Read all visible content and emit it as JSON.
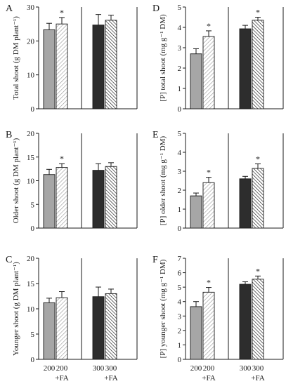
{
  "figure": {
    "background": "#ffffff",
    "stroke": "#1a1a1a"
  },
  "group_labels": [
    "200",
    "200\n+FA",
    "300",
    "300\n+FA"
  ],
  "styles": {
    "colors": {
      "grey": "#a6a6a6",
      "black": "#2d2d2d",
      "hatch_fill": "#ffffff",
      "hatch_light": "#8c8c8c",
      "hatch_dark": "#1a1a1a"
    },
    "bars": [
      "grey",
      "hatch-light",
      "black",
      "hatch-dark"
    ]
  },
  "chart_data": [
    {
      "type": "bar",
      "panel_letter": "A",
      "ylabel": "Total shoot (g DM plant⁻¹)",
      "ylim": [
        0,
        30
      ],
      "yticks": [
        "0",
        "10",
        "20",
        "30"
      ],
      "ytick_values": [
        0,
        10,
        20,
        30
      ],
      "categories": [
        "200",
        "200 +FA",
        "300",
        "300 +FA"
      ],
      "values": [
        23.3,
        25.0,
        24.7,
        26.1
      ],
      "errors": [
        1.9,
        1.9,
        3.1,
        1.5
      ],
      "significant": [
        false,
        true,
        false,
        false
      ],
      "mark": "*"
    },
    {
      "type": "bar",
      "panel_letter": "D",
      "ylabel": "[P] total shoot (mg g⁻¹ DM)",
      "ylim": [
        0,
        5
      ],
      "yticks": [
        "0",
        "1",
        "2",
        "3",
        "4",
        "5"
      ],
      "ytick_values": [
        0,
        1,
        2,
        3,
        4,
        5
      ],
      "categories": [
        "200",
        "200 +FA",
        "300",
        "300 +FA"
      ],
      "values": [
        2.7,
        3.55,
        3.93,
        4.35
      ],
      "errors": [
        0.25,
        0.28,
        0.17,
        0.15
      ],
      "significant": [
        false,
        true,
        false,
        true
      ],
      "mark": "*"
    },
    {
      "type": "bar",
      "panel_letter": "B",
      "ylabel": "Older shoot (g DM plant⁻¹)",
      "ylim": [
        0,
        20
      ],
      "yticks": [
        "0",
        "5",
        "10",
        "15",
        "20"
      ],
      "ytick_values": [
        0,
        5,
        10,
        15,
        20
      ],
      "categories": [
        "200",
        "200 +FA",
        "300",
        "300 +FA"
      ],
      "values": [
        11.3,
        12.8,
        12.2,
        13.0
      ],
      "errors": [
        1.1,
        0.8,
        1.4,
        0.8
      ],
      "significant": [
        false,
        true,
        false,
        false
      ],
      "mark": "*"
    },
    {
      "type": "bar",
      "panel_letter": "E",
      "ylabel": "[P] older shoot (mg g⁻¹ DM)",
      "ylim": [
        0,
        5
      ],
      "yticks": [
        "0",
        "1",
        "2",
        "3",
        "4",
        "5"
      ],
      "ytick_values": [
        0,
        1,
        2,
        3,
        4,
        5
      ],
      "categories": [
        "200",
        "200 +FA",
        "300",
        "300 +FA"
      ],
      "values": [
        1.7,
        2.4,
        2.6,
        3.15
      ],
      "errors": [
        0.15,
        0.28,
        0.13,
        0.24
      ],
      "significant": [
        false,
        true,
        false,
        true
      ],
      "mark": "*"
    },
    {
      "type": "bar",
      "panel_letter": "C",
      "ylabel": "Younger shoot (g DM plant⁻¹)",
      "ylim": [
        0,
        20
      ],
      "yticks": [
        "0",
        "5",
        "10",
        "15",
        "20"
      ],
      "ytick_values": [
        0,
        5,
        10,
        15,
        20
      ],
      "categories": [
        "200",
        "200 +FA",
        "300",
        "300 +FA"
      ],
      "values": [
        11.2,
        12.2,
        12.4,
        13.0
      ],
      "errors": [
        0.9,
        1.2,
        1.9,
        0.9
      ],
      "significant": [
        false,
        false,
        false,
        false
      ],
      "mark": "*"
    },
    {
      "type": "bar",
      "panel_letter": "F",
      "ylabel": "[P] younger shoot (mg g⁻¹ DM)",
      "ylim": [
        0,
        7
      ],
      "yticks": [
        "0",
        "1",
        "2",
        "3",
        "4",
        "5",
        "6",
        "7"
      ],
      "ytick_values": [
        0,
        1,
        2,
        3,
        4,
        5,
        6,
        7
      ],
      "categories": [
        "200",
        "200 +FA",
        "300",
        "300 +FA"
      ],
      "values": [
        3.65,
        4.65,
        5.2,
        5.55
      ],
      "errors": [
        0.35,
        0.33,
        0.17,
        0.22
      ],
      "significant": [
        false,
        true,
        false,
        true
      ],
      "mark": "*"
    }
  ]
}
